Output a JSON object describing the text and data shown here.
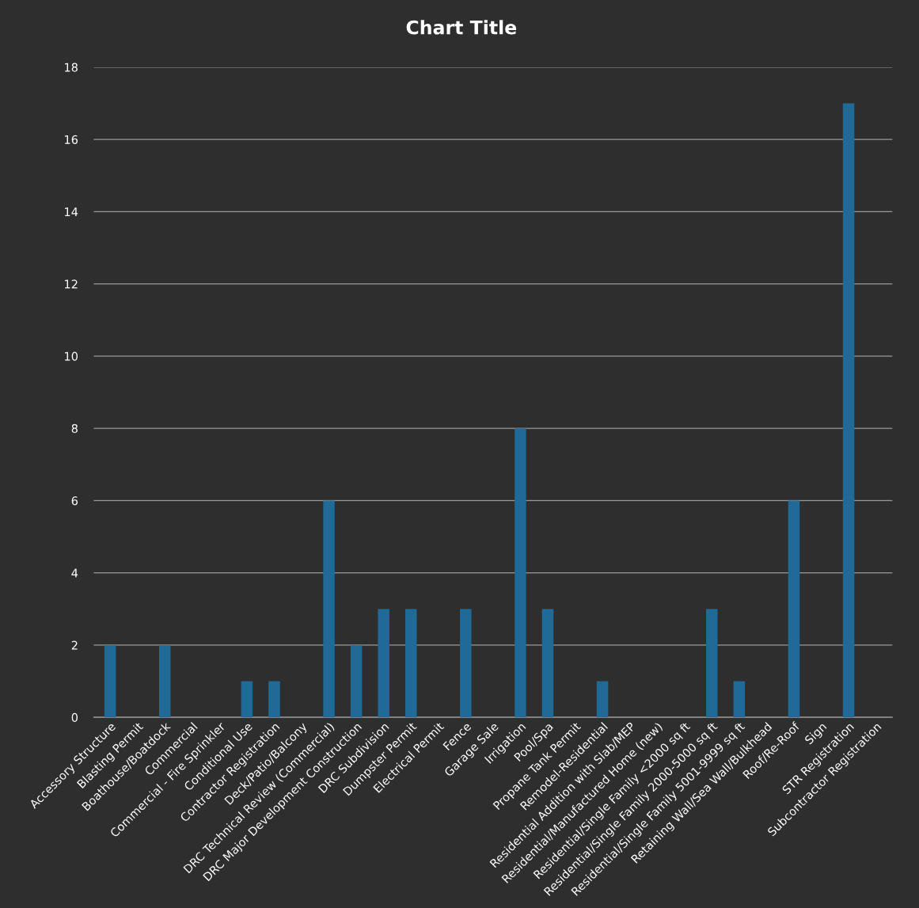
{
  "chart_data": {
    "type": "bar",
    "title": "Chart Title",
    "categories": [
      "Accessory Structure",
      "Blasting Permit",
      "Boathouse/Boatdock",
      "Commercial",
      "Commercial - Fire Sprinkler",
      "Conditional Use",
      "Contractor Registration",
      "Deck/Patio/Balcony",
      "DRC Technical Review (Commercial)",
      "DRC Major Development Construction",
      "DRC Subdivision",
      "Dumpster Permit",
      "Electrical Permit",
      "Fence",
      "Garage Sale",
      "Irrigation",
      "Pool/Spa",
      "Propane Tank Permit",
      "Remodel-Residential",
      "Residential Addition with Slab/MEP",
      "Residential/Manufactured Home (new)",
      "Residential/Single Family <2000 sq ft",
      "Residential/Single Family 2000-5000 sq ft",
      "Residential/Single Family 5001-9999 sq ft",
      "Retaining Wall/Sea Wall/Bulkhead",
      "Roof/Re-Roof",
      "Sign",
      "STR Registration",
      "Subcontractor Registration"
    ],
    "values": [
      2,
      0,
      2,
      0,
      0,
      1,
      1,
      0,
      6,
      2,
      3,
      3,
      0,
      3,
      0,
      8,
      3,
      0,
      1,
      0,
      0,
      0,
      3,
      1,
      0,
      6,
      0,
      17,
      0
    ],
    "color": "#1f6a96",
    "ylim": [
      0,
      18
    ],
    "yticks": [
      0,
      2,
      4,
      6,
      8,
      10,
      12,
      14,
      16,
      18
    ],
    "grid": "y",
    "legend": false
  }
}
